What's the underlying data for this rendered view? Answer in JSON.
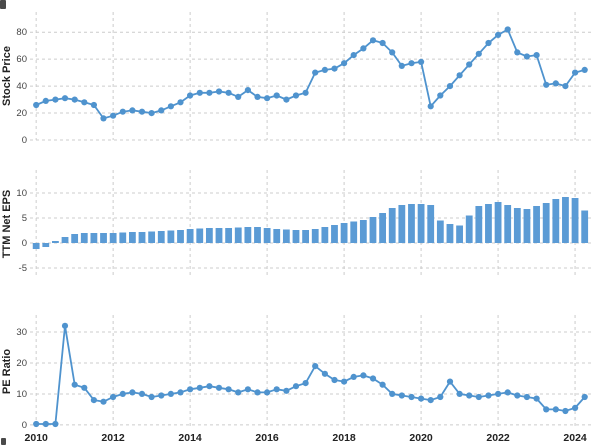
{
  "colors": {
    "accent": "#4f93ce",
    "bar": "#5b9bd5",
    "grid": "#cccccc",
    "axis_label": "#222222",
    "tick_label": "#444444",
    "x_tick_label": "#222222"
  },
  "x_axis": {
    "tick_values": [
      2010,
      2012,
      2014,
      2016,
      2018,
      2020,
      2022,
      2024
    ],
    "tick_labels": [
      "2010",
      "2012",
      "2014",
      "2016",
      "2018",
      "2020",
      "2022",
      "2024"
    ],
    "xlim": [
      2009.84,
      2024.44
    ]
  },
  "chart_data": [
    {
      "type": "line",
      "ylabel": "Stock Price",
      "x_start": 2010.0,
      "x_step": 0.25,
      "values": [
        26,
        29,
        30,
        31,
        30,
        28,
        26,
        16,
        18,
        21,
        22,
        21,
        20,
        22,
        25,
        28,
        33,
        35,
        35,
        36,
        35,
        32,
        37,
        32,
        31,
        33,
        30,
        33,
        35,
        50,
        52,
        53,
        57,
        63,
        68,
        74,
        72,
        65,
        55,
        57,
        58,
        25,
        33,
        40,
        48,
        56,
        64,
        72,
        78,
        82,
        65,
        62,
        63,
        41,
        42,
        40,
        50,
        52
      ],
      "yticks": [
        0,
        20,
        40,
        60,
        80
      ],
      "ylim": [
        0,
        95
      ],
      "grid": true,
      "legend": null
    },
    {
      "type": "bar",
      "ylabel": "TTM Net EPS",
      "x_start": 2010.0,
      "x_step": 0.25,
      "values": [
        -1.2,
        -0.8,
        0.4,
        1.2,
        1.8,
        2,
        2,
        2,
        2,
        2.1,
        2.2,
        2.2,
        2.3,
        2.4,
        2.5,
        2.6,
        2.8,
        2.9,
        3,
        3,
        3,
        3.1,
        3.2,
        3.2,
        3,
        2.8,
        2.7,
        2.6,
        2.6,
        2.8,
        3.2,
        3.6,
        4,
        4.3,
        4.6,
        5.2,
        6,
        7,
        7.6,
        7.8,
        7.8,
        7.6,
        4.5,
        3.8,
        3.5,
        5.5,
        7.4,
        7.8,
        8.2,
        7.6,
        7,
        6.8,
        7.4,
        8,
        8.8,
        9.2,
        9,
        6.5
      ],
      "yticks": [
        -5,
        0,
        5,
        10
      ],
      "ylim": [
        -7,
        14.6
      ],
      "grid": true,
      "legend": null
    },
    {
      "type": "line",
      "ylabel": "PE Ratio",
      "x_start": 2010.0,
      "x_step": 0.25,
      "values": [
        0.3,
        0.3,
        0.3,
        32,
        13,
        12,
        8,
        7.5,
        9,
        10,
        10.5,
        10,
        9,
        9.5,
        10,
        10.5,
        11.5,
        12,
        12.5,
        12,
        11.5,
        10.5,
        11.5,
        10.5,
        10.5,
        11.5,
        11,
        12.5,
        13.5,
        19,
        16.5,
        14.5,
        14,
        15.5,
        16,
        15,
        13,
        10,
        9.5,
        9,
        8.5,
        8,
        9,
        14,
        10,
        9.5,
        9,
        9.5,
        10,
        10.5,
        9.5,
        9,
        8.5,
        5,
        5,
        4.5,
        5.5,
        9
      ],
      "yticks": [
        0,
        10,
        20,
        30
      ],
      "ylim": [
        -1,
        35.5
      ],
      "grid": true,
      "legend": null
    }
  ]
}
